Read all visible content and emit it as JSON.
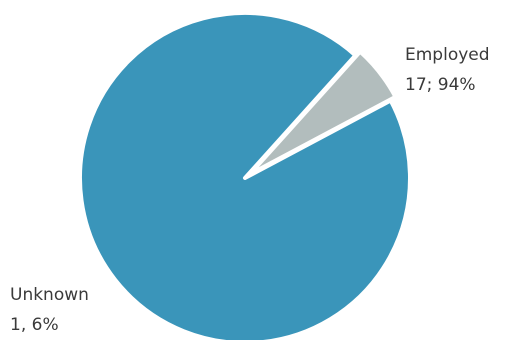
{
  "chart_data": {
    "type": "pie",
    "title": "",
    "slices": [
      {
        "label": "Employed",
        "value": 17,
        "percent": 94,
        "value_text": "17; 94%",
        "color": "#3A95BA"
      },
      {
        "label": "Unknown",
        "value": 1,
        "percent": 6,
        "value_text": "1, 6%",
        "color": "#B2BDBD"
      }
    ],
    "slice_border_color": "#FFFFFF",
    "start_angle_deg": 28,
    "direction": "clockwise",
    "legend": "none",
    "label_placement": "outside"
  }
}
